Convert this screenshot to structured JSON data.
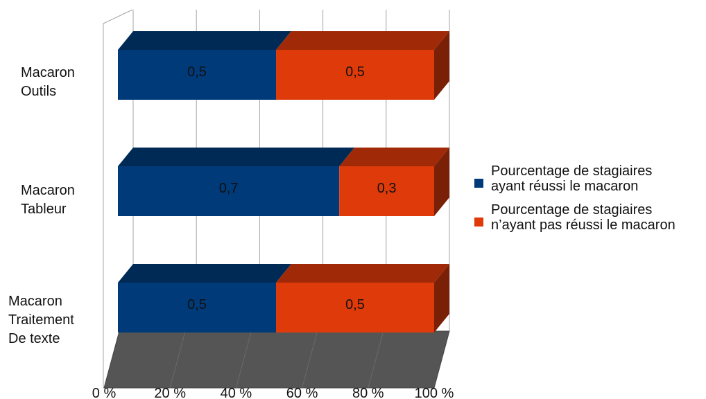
{
  "chart_data": {
    "type": "bar",
    "orientation": "horizontal",
    "stacked": "percent",
    "three_d": true,
    "categories": [
      [
        "Macaron",
        "Outils"
      ],
      [
        "Macaron",
        "Tableur"
      ],
      [
        "Macaron",
        "Traitement",
        "De texte"
      ]
    ],
    "series": [
      {
        "name": "Pourcentage de stagiaires\nayant réussi le macaron",
        "values": [
          0.5,
          0.7,
          0.5
        ],
        "data_labels": [
          "0,5",
          "0,7",
          "0,5"
        ],
        "color": "#003a78"
      },
      {
        "name": "Pourcentage de stagiaires\nn’ayant pas réussi le macaron",
        "values": [
          0.5,
          0.3,
          0.5
        ],
        "data_labels": [
          "0,5",
          "0,3",
          "0,5"
        ],
        "color": "#de3a0a"
      }
    ],
    "x_ticks": [
      "0 %",
      "20 %",
      "40 %",
      "60 %",
      "80 %",
      "100 %"
    ],
    "xlim": [
      0,
      100
    ],
    "grid": true,
    "legend_position": "right",
    "floor_color": "#555555"
  }
}
